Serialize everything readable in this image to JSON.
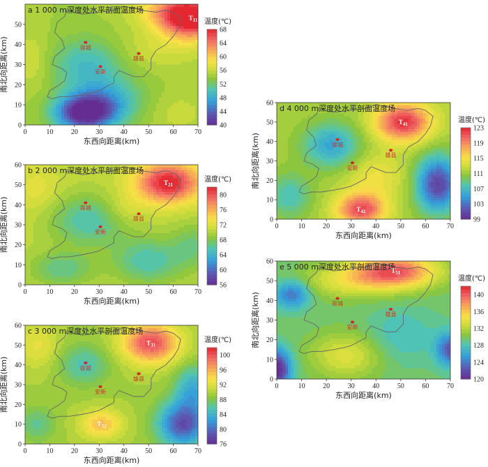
{
  "chart_data": [
    {
      "type": "heatmap",
      "panel": "a",
      "title": "a 1 000 m深度处水平剖面温度场",
      "xlabel": "东西向距离(km)",
      "ylabel": "南北向距离(km)",
      "xlim": [
        0,
        70
      ],
      "ylim": [
        0,
        60
      ],
      "xticks": [
        0,
        10,
        20,
        30,
        40,
        50,
        60,
        70
      ],
      "yticks": [
        0,
        10,
        20,
        30,
        40,
        50
      ],
      "colorbar": {
        "title": "温度(℃)",
        "min": 40,
        "max": 68,
        "ticks": [
          40,
          44,
          48,
          52,
          56,
          60,
          64,
          68
        ]
      },
      "base": 55,
      "anomalies": [
        {
          "x": 68,
          "y": 53,
          "sx": 9,
          "sy": 7,
          "a": 15,
          "label": "T11"
        },
        {
          "x": 58,
          "y": 57,
          "sx": 10,
          "sy": 6,
          "a": 5
        },
        {
          "x": 24,
          "y": 6,
          "sx": 8,
          "sy": 6,
          "a": -15
        },
        {
          "x": 33,
          "y": 12,
          "sx": 10,
          "sy": 8,
          "a": -6
        },
        {
          "x": 25,
          "y": 30,
          "sx": 10,
          "sy": 9,
          "a": -5
        },
        {
          "x": 55,
          "y": 38,
          "sx": 12,
          "sy": 7,
          "a": 2
        },
        {
          "x": 62,
          "y": 6,
          "sx": 8,
          "sy": 7,
          "a": 1.5
        },
        {
          "x": 3,
          "y": 32,
          "sx": 5,
          "sy": 10,
          "a": 2
        }
      ],
      "cities": [
        {
          "name": "容城",
          "x": 24.5,
          "y": 41
        },
        {
          "name": "雄县",
          "x": 46,
          "y": 35.5
        },
        {
          "name": "安新",
          "x": 30.5,
          "y": 29
        }
      ]
    },
    {
      "type": "heatmap",
      "panel": "b",
      "title": "b 2 000 m深度处水平剖面温度场",
      "xlabel": "东西向距离(km)",
      "ylabel": "南北向距离(km)",
      "xlim": [
        0,
        70
      ],
      "ylim": [
        0,
        60
      ],
      "xticks": [
        0,
        10,
        20,
        30,
        40,
        50,
        60,
        70
      ],
      "yticks": [
        0,
        10,
        20,
        30,
        40,
        50,
        60
      ],
      "colorbar": {
        "title": "温度(℃)",
        "min": 56,
        "max": 82,
        "ticks": [
          56,
          60,
          64,
          68,
          72,
          76,
          80
        ]
      },
      "base": 71,
      "anomalies": [
        {
          "x": 58,
          "y": 51,
          "sx": 9,
          "sy": 7,
          "a": 12,
          "label": "T21"
        },
        {
          "x": 26,
          "y": 32,
          "sx": 11,
          "sy": 9,
          "a": -5
        },
        {
          "x": 50,
          "y": 12,
          "sx": 10,
          "sy": 8,
          "a": -5
        },
        {
          "x": 15,
          "y": 8,
          "sx": 9,
          "sy": 6,
          "a": -4
        },
        {
          "x": 68,
          "y": 20,
          "sx": 6,
          "sy": 8,
          "a": -3
        },
        {
          "x": 5,
          "y": 48,
          "sx": 6,
          "sy": 8,
          "a": 2
        },
        {
          "x": 40,
          "y": 38,
          "sx": 6,
          "sy": 6,
          "a": 2
        }
      ],
      "cities": [
        {
          "name": "容城",
          "x": 24.5,
          "y": 41
        },
        {
          "name": "雄县",
          "x": 46,
          "y": 35.5
        },
        {
          "name": "安新",
          "x": 30.5,
          "y": 29
        }
      ]
    },
    {
      "type": "heatmap",
      "panel": "c",
      "title": "c 3 000 m深度处水平剖面温度场",
      "xlabel": "东西向距离(km)",
      "ylabel": "南北向距离(km)",
      "xlim": [
        0,
        70
      ],
      "ylim": [
        0,
        60
      ],
      "xticks": [
        0,
        10,
        20,
        30,
        40,
        50,
        60,
        70
      ],
      "yticks": [
        0,
        10,
        20,
        30,
        40,
        50,
        60
      ],
      "colorbar": {
        "title": "温度(℃)",
        "min": 76,
        "max": 102,
        "ticks": [
          76,
          80,
          84,
          88,
          92,
          96,
          100
        ]
      },
      "base": 90,
      "anomalies": [
        {
          "x": 51,
          "y": 51,
          "sx": 8,
          "sy": 7,
          "a": 11,
          "label": "T31"
        },
        {
          "x": 31,
          "y": 10,
          "sx": 6,
          "sy": 5,
          "a": 6,
          "label": "T32"
        },
        {
          "x": 24,
          "y": 40,
          "sx": 7,
          "sy": 7,
          "a": -4
        },
        {
          "x": 64,
          "y": 10,
          "sx": 7,
          "sy": 8,
          "a": -11
        },
        {
          "x": 68,
          "y": 28,
          "sx": 5,
          "sy": 8,
          "a": -6
        },
        {
          "x": 5,
          "y": 10,
          "sx": 5,
          "sy": 6,
          "a": -3
        },
        {
          "x": 5,
          "y": 50,
          "sx": 6,
          "sy": 8,
          "a": 3
        }
      ],
      "cities": [
        {
          "name": "容城",
          "x": 24.5,
          "y": 41
        },
        {
          "name": "雄县",
          "x": 46,
          "y": 35.5
        },
        {
          "name": "安新",
          "x": 30.5,
          "y": 29
        }
      ]
    },
    {
      "type": "heatmap",
      "panel": "d",
      "title": "d 4 000 m深度处水平剖面温度场",
      "xlabel": "东西向距离(km)",
      "ylabel": "南北向距离(km)",
      "xlim": [
        0,
        70
      ],
      "ylim": [
        0,
        60
      ],
      "xticks": [
        0,
        10,
        20,
        30,
        40,
        50,
        60,
        70
      ],
      "yticks": [
        0,
        10,
        20,
        30,
        40,
        50,
        60
      ],
      "colorbar": {
        "title": "温度(℃)",
        "min": 99,
        "max": 123,
        "ticks": [
          99,
          103,
          107,
          111,
          115,
          119,
          123
        ]
      },
      "base": 112,
      "anomalies": [
        {
          "x": 51,
          "y": 50,
          "sx": 8,
          "sy": 7,
          "a": 11,
          "label": "T41"
        },
        {
          "x": 34,
          "y": 5,
          "sx": 7,
          "sy": 6,
          "a": 10,
          "label": "T42"
        },
        {
          "x": 22,
          "y": 38,
          "sx": 8,
          "sy": 8,
          "a": -6
        },
        {
          "x": 65,
          "y": 18,
          "sx": 6,
          "sy": 10,
          "a": -11
        },
        {
          "x": 5,
          "y": 12,
          "sx": 6,
          "sy": 8,
          "a": -4
        },
        {
          "x": 40,
          "y": 22,
          "sx": 8,
          "sy": 8,
          "a": 3
        }
      ],
      "cities": [
        {
          "name": "容城",
          "x": 24.5,
          "y": 41
        },
        {
          "name": "雄县",
          "x": 46,
          "y": 35.5
        },
        {
          "name": "安新",
          "x": 30.5,
          "y": 29
        }
      ]
    },
    {
      "type": "heatmap",
      "panel": "e",
      "title": "e 5 000 m深度处水平剖面温度场",
      "xlabel": "东西向距离(km)",
      "ylabel": "南北向距离(km)",
      "xlim": [
        0,
        70
      ],
      "ylim": [
        0,
        60
      ],
      "xticks": [
        0,
        10,
        20,
        30,
        40,
        50,
        60,
        70
      ],
      "yticks": [
        0,
        10,
        20,
        30,
        40,
        50,
        60
      ],
      "colorbar": {
        "title": "温度(℃)",
        "min": 120,
        "max": 142,
        "ticks": [
          120,
          124,
          128,
          132,
          136,
          140
        ]
      },
      "base": 130,
      "anomalies": [
        {
          "x": 48,
          "y": 55,
          "sx": 12,
          "sy": 6,
          "a": 10,
          "label": "T51"
        },
        {
          "x": 30,
          "y": 50,
          "sx": 14,
          "sy": 6,
          "a": 4
        },
        {
          "x": 6,
          "y": 43,
          "sx": 5,
          "sy": 5,
          "a": -6
        },
        {
          "x": 0,
          "y": 5,
          "sx": 4,
          "sy": 7,
          "a": -10
        },
        {
          "x": 70,
          "y": 15,
          "sx": 4,
          "sy": 6,
          "a": -7
        },
        {
          "x": 28,
          "y": 12,
          "sx": 10,
          "sy": 8,
          "a": 4
        },
        {
          "x": 50,
          "y": 22,
          "sx": 10,
          "sy": 10,
          "a": -2
        }
      ],
      "cities": [
        {
          "name": "容城",
          "x": 24.5,
          "y": 41
        },
        {
          "name": "雄县",
          "x": 46,
          "y": 35.5
        },
        {
          "name": "安新",
          "x": 30.5,
          "y": 29
        }
      ]
    }
  ],
  "boundary": [
    [
      17,
      57
    ],
    [
      23,
      55
    ],
    [
      30,
      56
    ],
    [
      36,
      57
    ],
    [
      40,
      59
    ],
    [
      44,
      58
    ],
    [
      47,
      57
    ],
    [
      53,
      56
    ],
    [
      57,
      57
    ],
    [
      60,
      56
    ],
    [
      63,
      53
    ],
    [
      62,
      48
    ],
    [
      60,
      44
    ],
    [
      57,
      40
    ],
    [
      53,
      37
    ],
    [
      51,
      33
    ],
    [
      51,
      28
    ],
    [
      48,
      24
    ],
    [
      44,
      24
    ],
    [
      40,
      26
    ],
    [
      38,
      27
    ],
    [
      36,
      24
    ],
    [
      36,
      21
    ],
    [
      33,
      19
    ],
    [
      30,
      17
    ],
    [
      27,
      16
    ],
    [
      23,
      15
    ],
    [
      18,
      14
    ],
    [
      14,
      14
    ],
    [
      11,
      13
    ],
    [
      9,
      14
    ],
    [
      10,
      17
    ],
    [
      14,
      20
    ],
    [
      16,
      22
    ],
    [
      17,
      26
    ],
    [
      15,
      28
    ],
    [
      11,
      30
    ],
    [
      12,
      34
    ],
    [
      16,
      38
    ],
    [
      15,
      42
    ],
    [
      12,
      46
    ],
    [
      13,
      51
    ],
    [
      16,
      54
    ],
    [
      17,
      57
    ]
  ]
}
